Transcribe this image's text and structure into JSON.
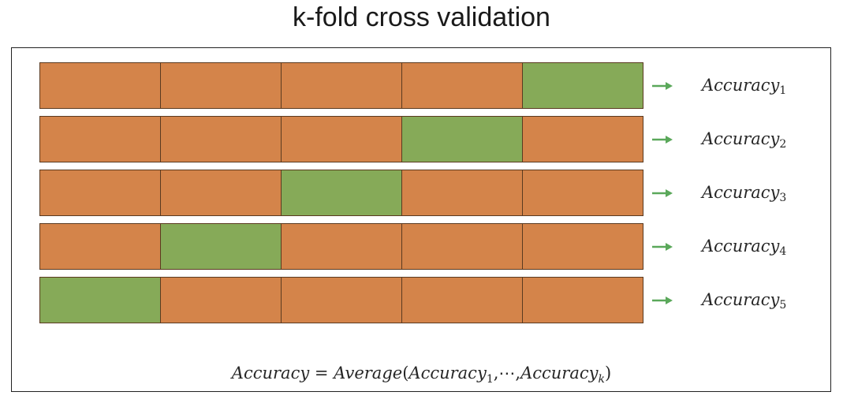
{
  "title": "k-fold cross validation",
  "colors": {
    "train": "#d4844a",
    "test": "#86aa58",
    "arrow": "#5aa85a",
    "border": "#5a3a20"
  },
  "folds": [
    {
      "test_index": 4,
      "label": "Accuracy",
      "subscript": "1"
    },
    {
      "test_index": 3,
      "label": "Accuracy",
      "subscript": "2"
    },
    {
      "test_index": 2,
      "label": "Accuracy",
      "subscript": "3"
    },
    {
      "test_index": 1,
      "label": "Accuracy",
      "subscript": "4"
    },
    {
      "test_index": 0,
      "label": "Accuracy",
      "subscript": "5"
    }
  ],
  "cells_per_fold": 5,
  "formula": {
    "lhs": "Accuracy",
    "eq": " = ",
    "func": "Average",
    "open": "(",
    "arg1": "Accuracy",
    "arg1_sub": "1",
    "middle": ",⋯,",
    "arg2": "Accuracy",
    "arg2_sub": "k",
    "close": ")"
  }
}
